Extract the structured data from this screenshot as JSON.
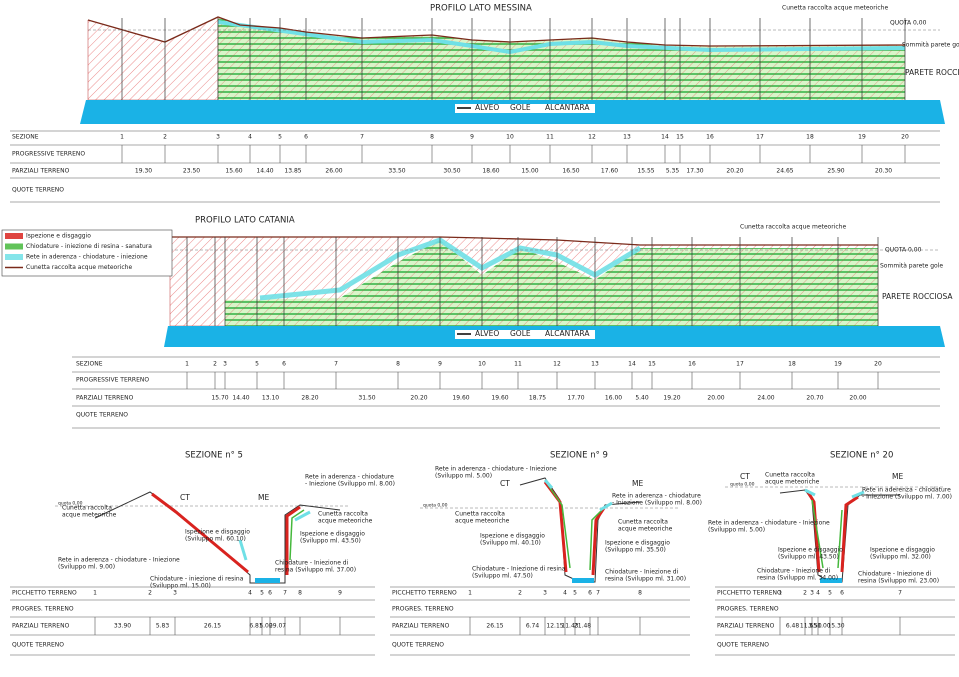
{
  "legend": {
    "items": [
      {
        "label": "Ispezione e disgaggio",
        "color": "#d9231f"
      },
      {
        "label": "Chiodature - iniezione di resina - sanatura",
        "color": "#45b83c"
      },
      {
        "label": "Rete in aderenza - chiodature - iniezione",
        "color": "#6fe0e6"
      },
      {
        "label": "Cunetta raccolta acque meteoriche",
        "color": "#7a2a1a"
      }
    ]
  },
  "profile_messina": {
    "title": "PROFILO LATO MESSINA",
    "labels": [
      "Cunetta raccolta acque meteoriche",
      "QUOTA 0,00",
      "Sommità parete gole",
      "PARETE ROCCIOSA"
    ],
    "river": [
      "ALVEO",
      "GOLE",
      "ALCANTARA"
    ],
    "row_headers": [
      "SEZIONE",
      "PROGRESSIVE TERRENO",
      "PARZIALI TERRENO",
      "QUOTE TERRENO"
    ],
    "sections": [
      "1",
      "2",
      "3",
      "4",
      "5",
      "6",
      "7",
      "8",
      "9",
      "10",
      "11",
      "12",
      "13",
      "14",
      "15",
      "16",
      "17",
      "18",
      "19",
      "20"
    ],
    "partials": [
      "19.30",
      "23.50",
      "15.60",
      "14.40",
      "13.85",
      "26.00",
      "33.50",
      "30.50",
      "18.60",
      "15.00",
      "16.50",
      "17.60",
      "15.55",
      "5.35",
      "17.30",
      "20.20",
      "24.65",
      "25.90",
      "20.30"
    ]
  },
  "profile_catania": {
    "title": "PROFILO LATO CATANIA",
    "labels": [
      "Cunetta raccolta acque meteoriche",
      "QUOTA 0,00",
      "Sommità parete gole",
      "PARETE ROCCIOSA"
    ],
    "river": [
      "ALVEO",
      "GOLE",
      "ALCANTARA"
    ],
    "row_headers": [
      "SEZIONE",
      "PROGRESSIVE TERRENO",
      "PARZIALI TERRENO",
      "QUOTE TERRENO"
    ],
    "sections": [
      "1",
      "2",
      "3",
      "5",
      "6",
      "7",
      "8",
      "9",
      "10",
      "11",
      "12",
      "13",
      "14",
      "15",
      "16",
      "17",
      "18",
      "19",
      "20"
    ],
    "partials": [
      "15.70",
      "14.40",
      "13.10",
      "28.20",
      "31.50",
      "20.20",
      "19.60",
      "19.60",
      "18.75",
      "17.70",
      "16.00",
      "5.40",
      "19.20",
      "20.00",
      "24.00",
      "20.70",
      "20.00"
    ]
  },
  "sections": [
    {
      "title": "SEZIONE n° 5",
      "ct": "CT",
      "me": "ME",
      "quota": "quota 0,00",
      "notes": [
        [
          "Cunetta raccolta",
          "acque meteoriche"
        ],
        [
          "Rete in aderenza - chiodature",
          "- Iniezione (Sviluppo ml. 8.00)"
        ],
        [
          "Cunetta raccolta",
          "acque meteoriche"
        ],
        [
          "Ispezione e disgaggio",
          "(Sviluppo ml. 60.10)"
        ],
        [
          "Ispezione e disgaggio",
          "(Sviluppo ml. 43.50)"
        ],
        [
          "Rete in aderenza - chiodature - Iniezione",
          "(Sviluppo ml. 9.00)"
        ],
        [
          "Chiodature - Iniezione di",
          "resina (Sviluppo ml. 37.00)"
        ],
        [
          "Chiodature - iniezione di resina",
          "(Sviluppo ml. 15.00)"
        ]
      ],
      "row_headers": [
        "PICCHETTO TERRENO",
        "PROGRES. TERRENO",
        "PARZIALI TERRENO",
        "QUOTE TERRENO"
      ],
      "stakes": [
        "1",
        "2",
        "3",
        "4",
        "5",
        "6",
        "7",
        "8",
        "9"
      ],
      "partials": [
        "33.90",
        "5.83",
        "26.15",
        "6.81",
        "5.00",
        "29.07"
      ]
    },
    {
      "title": "SEZIONE n° 9",
      "ct": "CT",
      "me": "ME",
      "quota": "quota 0,00",
      "notes": [
        [
          "Rete in aderenza - chiodature - Iniezione",
          "(Sviluppo ml. 5.00)"
        ],
        [
          "Rete in aderenza - chiodature",
          "- Iniezione (Sviluppo ml. 8.00)"
        ],
        [
          "Cunetta raccolta",
          "acque meteoriche"
        ],
        [
          "Cunetta raccolta",
          "acque meteoriche"
        ],
        [
          "Ispezione e disgaggio",
          "(Sviluppo ml. 40.10)"
        ],
        [
          "Ispezione e disgaggio",
          "(Sviluppo ml. 35.50)"
        ],
        [
          "Chiodature - Iniezione di resina",
          "(Sviluppo ml. 47.50)"
        ],
        [
          "Chiodature - Iniezione di",
          "resina (Sviluppo ml. 31.00)"
        ]
      ],
      "row_headers": [
        "PICCHETTO TERRENO",
        "PROGRES. TERRENO",
        "PARZIALI TERRENO",
        "QUOTE TERRENO"
      ],
      "stakes": [
        "1",
        "2",
        "3",
        "4",
        "5",
        "6",
        "7",
        "8"
      ],
      "partials": [
        "26.15",
        "6.74",
        "12.15",
        "11.43",
        "21.48"
      ]
    },
    {
      "title": "SEZIONE n° 20",
      "ct": "CT",
      "me": "ME",
      "quota": "quota 0,00",
      "notes": [
        [
          "Cunetta raccolta",
          "acque meteoriche"
        ],
        [
          "Rete in aderenza - chiodature",
          "- Iniezione (Sviluppo ml. 7.00)"
        ],
        [
          "Rete in aderenza - chiodature - Iniezione",
          "(Sviluppo ml. 5.00)"
        ],
        [
          "Ispezione e disgaggio",
          "(Sviluppo ml. 43.50)"
        ],
        [
          "Ispezione e disgaggio",
          "(Sviluppo ml. 32.00)"
        ],
        [
          "Chiodature - Iniezione di",
          "resina (Sviluppo ml. 34.00)"
        ],
        [
          "Chiodature - Iniezione di",
          "resina (Sviluppo ml. 23.00)"
        ]
      ],
      "row_headers": [
        "PICCHETTO TERRENO",
        "PROGRES. TERRENO",
        "PARZIALI TERRENO",
        "QUOTE TERRENO"
      ],
      "stakes": [
        "1",
        "2",
        "3",
        "4",
        "5",
        "6",
        "7"
      ],
      "partials": [
        "6.48",
        "11.65",
        "3.50",
        "1.00",
        "15.30"
      ]
    }
  ]
}
